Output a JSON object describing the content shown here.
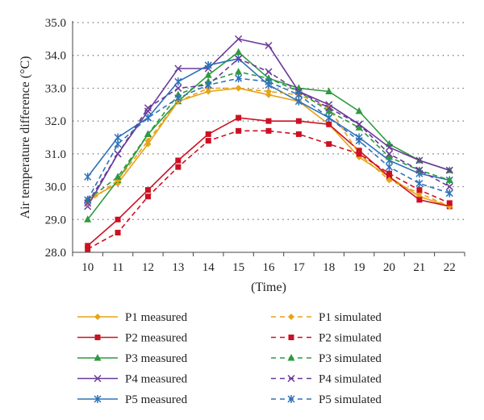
{
  "chart_data": {
    "type": "line",
    "title": "",
    "xlabel": "(Time)",
    "ylabel": "Air temperature difference (°C)",
    "x": [
      10,
      11,
      12,
      13,
      14,
      15,
      16,
      17,
      18,
      19,
      20,
      21,
      22
    ],
    "xlim": [
      10,
      22
    ],
    "ylim": [
      28.0,
      35.0
    ],
    "yticks": [
      "28.0",
      "29.0",
      "30.0",
      "31.0",
      "32.0",
      "33.0",
      "34.0",
      "35.0"
    ],
    "grid": "horizontal dotted",
    "legend_position": "bottom, two columns",
    "series": [
      {
        "name": "P1 measured",
        "color": "#E8A317",
        "dash": "solid",
        "marker": "diamond",
        "values": [
          29.6,
          30.1,
          31.3,
          32.6,
          32.9,
          33.0,
          32.8,
          32.6,
          31.9,
          30.9,
          30.3,
          29.7,
          29.4
        ]
      },
      {
        "name": "P2 measured",
        "color": "#CC1122",
        "dash": "solid",
        "marker": "square",
        "values": [
          28.2,
          29.0,
          29.9,
          30.8,
          31.6,
          32.1,
          32.0,
          32.0,
          31.9,
          31.1,
          30.3,
          29.6,
          29.4
        ]
      },
      {
        "name": "P3 measured",
        "color": "#2E9A3E",
        "dash": "solid",
        "marker": "triangle",
        "values": [
          29.0,
          30.2,
          31.6,
          32.6,
          33.4,
          34.1,
          33.3,
          33.0,
          32.9,
          32.3,
          31.3,
          30.8,
          30.5
        ]
      },
      {
        "name": "P4 measured",
        "color": "#6A3A9A",
        "dash": "solid",
        "marker": "x",
        "values": [
          29.4,
          31.0,
          32.3,
          33.6,
          33.6,
          34.5,
          34.3,
          32.9,
          32.5,
          31.9,
          31.2,
          30.8,
          30.5
        ]
      },
      {
        "name": "P5 measured",
        "color": "#2E72B8",
        "dash": "solid",
        "marker": "star",
        "values": [
          30.3,
          31.5,
          32.1,
          33.2,
          33.7,
          33.9,
          33.1,
          32.6,
          32.1,
          31.5,
          30.8,
          30.4,
          30.2
        ]
      },
      {
        "name": "P1 simulated",
        "color": "#E8A317",
        "dash": "dashed",
        "marker": "diamond",
        "values": [
          29.5,
          30.2,
          31.4,
          32.6,
          33.0,
          33.0,
          32.9,
          32.8,
          32.4,
          31.0,
          30.2,
          29.8,
          29.4
        ]
      },
      {
        "name": "P2 simulated",
        "color": "#CC1122",
        "dash": "dashed",
        "marker": "square",
        "values": [
          28.1,
          28.6,
          29.7,
          30.6,
          31.4,
          31.7,
          31.7,
          31.6,
          31.3,
          31.0,
          30.4,
          29.9,
          29.5
        ]
      },
      {
        "name": "P3 simulated",
        "color": "#2E9A3E",
        "dash": "dashed",
        "marker": "triangle",
        "values": [
          29.6,
          30.3,
          31.6,
          32.8,
          33.2,
          33.5,
          33.3,
          32.9,
          32.3,
          31.8,
          30.9,
          30.5,
          30.2
        ]
      },
      {
        "name": "P4 simulated",
        "color": "#6A3A9A",
        "dash": "dashed",
        "marker": "x",
        "values": [
          29.5,
          31.0,
          32.4,
          33.0,
          33.1,
          33.9,
          33.5,
          32.9,
          32.4,
          31.9,
          31.0,
          30.5,
          30.0
        ]
      },
      {
        "name": "P5 simulated",
        "color": "#2E72B8",
        "dash": "dashed",
        "marker": "star",
        "values": [
          29.6,
          31.3,
          32.1,
          32.7,
          33.1,
          33.3,
          33.2,
          32.8,
          32.1,
          31.4,
          30.6,
          30.1,
          29.8
        ]
      }
    ]
  }
}
